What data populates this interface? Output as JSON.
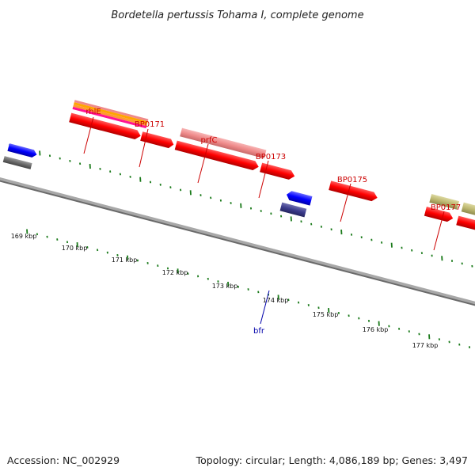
{
  "title": "Bordetella pertussis Tohama I, complete genome",
  "accession": "Accession: NC_002929",
  "summary": "Topology: circular; Length: 4,086,189 bp; Genes: 3,497",
  "colors": {
    "backbone": "#808080",
    "ticks": "#1a7a1a",
    "gene_forward": "#ff0000",
    "label_red": "#cc0000",
    "label_blue": "#0000aa",
    "gene_blue": "#0000ff",
    "gene_navy": "#3b3b8c",
    "gene_pink": "#ef8a8a",
    "gene_khaki": "#bdb870",
    "gene_gray": "#6a6a6a"
  },
  "scale_labels": [
    "169 kbp",
    "170 kbp",
    "171 kbp",
    "172 kbp",
    "173 kbp",
    "174 kbp",
    "175 kbp",
    "176 kbp",
    "177 kbp"
  ],
  "gene_labels": [
    {
      "name": "rhlE",
      "color": "red"
    },
    {
      "name": "BP0171",
      "color": "red"
    },
    {
      "name": "prfC",
      "color": "red"
    },
    {
      "name": "BP0173",
      "color": "red"
    },
    {
      "name": "BP0175",
      "color": "red"
    },
    {
      "name": "BP0177",
      "color": "red"
    },
    {
      "name": "bfr",
      "color": "blue"
    }
  ]
}
